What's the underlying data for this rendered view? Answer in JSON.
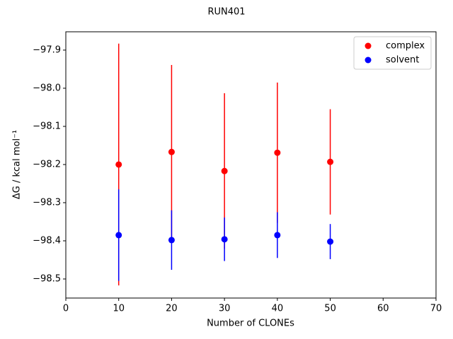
{
  "chart_data": {
    "type": "errorbar-scatter",
    "title": "RUN401",
    "x_label": "Number of CLONEs",
    "y_label": "ΔG / kcal mol⁻¹",
    "x": [
      10,
      20,
      30,
      40,
      50
    ],
    "series": [
      {
        "name": "complex",
        "color": "#ff0000",
        "values": [
          -98.2,
          -98.167,
          -98.217,
          -98.169,
          -98.193
        ],
        "errors": [
          0.317,
          0.228,
          0.204,
          0.184,
          0.138
        ]
      },
      {
        "name": "solvent",
        "color": "#0000ff",
        "values": [
          -98.385,
          -98.398,
          -98.396,
          -98.385,
          -98.402
        ],
        "errors": [
          0.12,
          0.078,
          0.057,
          0.06,
          0.046
        ]
      }
    ],
    "xlim": [
      0,
      70
    ],
    "xticks": [
      0,
      10,
      20,
      30,
      40,
      50,
      60,
      70
    ],
    "ylim": [
      -98.55,
      -97.852
    ],
    "yticks": [
      {
        "value": -98.5,
        "label": "−98.5"
      },
      {
        "value": -98.4,
        "label": "−98.4"
      },
      {
        "value": -98.3,
        "label": "−98.3"
      },
      {
        "value": -98.2,
        "label": "−98.2"
      },
      {
        "value": -98.1,
        "label": "−98.1"
      },
      {
        "value": -98.0,
        "label": "−98.0"
      },
      {
        "value": -97.9,
        "label": "−97.9"
      }
    ],
    "legend": "upper right"
  }
}
